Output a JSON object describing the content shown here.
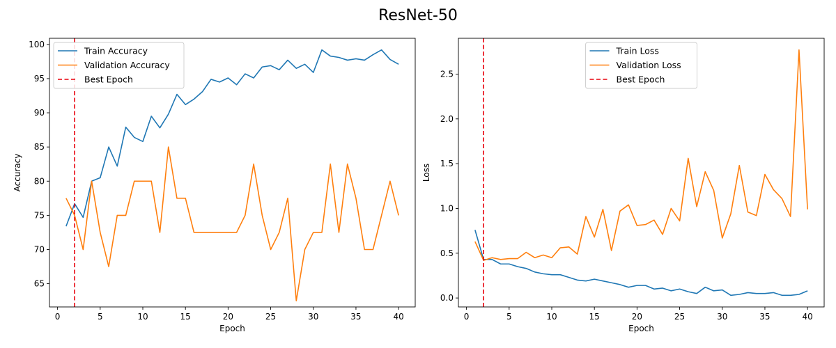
{
  "title": "ResNet-50",
  "colors": {
    "train": "#1f77b4",
    "validation": "#ff7f0e",
    "best": "#e8000b"
  },
  "chart_data": [
    {
      "type": "line",
      "title": "",
      "xlabel": "Epoch",
      "ylabel": "Accuracy",
      "xlim": [
        -0.95,
        41.95
      ],
      "ylim": [
        61.6,
        100.9
      ],
      "xticks": [
        0,
        5,
        10,
        15,
        20,
        25,
        30,
        35,
        40
      ],
      "yticks": [
        65,
        70,
        75,
        80,
        85,
        90,
        95,
        100
      ],
      "grid": false,
      "legend_position": "upper-left",
      "x": [
        1,
        2,
        3,
        4,
        5,
        6,
        7,
        8,
        9,
        10,
        11,
        12,
        13,
        14,
        15,
        16,
        17,
        18,
        19,
        20,
        21,
        22,
        23,
        24,
        25,
        26,
        27,
        28,
        29,
        30,
        31,
        32,
        33,
        34,
        35,
        36,
        37,
        38,
        39,
        40
      ],
      "series": [
        {
          "name": "Train Accuracy",
          "color_key": "train",
          "values": [
            73.4,
            76.7,
            74.7,
            80.0,
            80.5,
            85.0,
            82.2,
            87.9,
            86.4,
            85.8,
            89.5,
            87.8,
            89.8,
            92.7,
            91.2,
            92.0,
            93.1,
            94.9,
            94.5,
            95.1,
            94.1,
            95.7,
            95.1,
            96.7,
            96.9,
            96.3,
            97.7,
            96.5,
            97.1,
            95.9,
            99.2,
            98.3,
            98.1,
            97.7,
            97.9,
            97.7,
            98.5,
            99.2,
            97.8,
            97.1
          ]
        },
        {
          "name": "Validation Accuracy",
          "color_key": "validation",
          "values": [
            77.5,
            75.0,
            70.0,
            80.0,
            72.5,
            67.5,
            75.0,
            75.0,
            80.0,
            80.0,
            80.0,
            72.5,
            85.0,
            77.5,
            77.5,
            72.5,
            72.5,
            72.5,
            72.5,
            72.5,
            72.5,
            75.0,
            82.5,
            75.0,
            70.0,
            72.5,
            77.5,
            62.5,
            70.0,
            72.5,
            72.5,
            82.5,
            72.5,
            82.5,
            77.5,
            70.0,
            70.0,
            75.0,
            80.0,
            75.0
          ]
        }
      ],
      "best_epoch": {
        "name": "Best Epoch",
        "x": 2,
        "color_key": "best"
      }
    },
    {
      "type": "line",
      "title": "",
      "xlabel": "Epoch",
      "ylabel": "Loss",
      "xlim": [
        -0.95,
        41.95
      ],
      "ylim": [
        -0.1,
        2.9
      ],
      "xticks": [
        0,
        5,
        10,
        15,
        20,
        25,
        30,
        35,
        40
      ],
      "yticks": [
        0.0,
        0.5,
        1.0,
        1.5,
        2.0,
        2.5
      ],
      "ytick_labels": [
        "0.0",
        "0.5",
        "1.0",
        "1.5",
        "2.0",
        "2.5"
      ],
      "grid": false,
      "legend_position": "upper-center",
      "x": [
        1,
        2,
        3,
        4,
        5,
        6,
        7,
        8,
        9,
        10,
        11,
        12,
        13,
        14,
        15,
        16,
        17,
        18,
        19,
        20,
        21,
        22,
        23,
        24,
        25,
        26,
        27,
        28,
        29,
        30,
        31,
        32,
        33,
        34,
        35,
        36,
        37,
        38,
        39,
        40
      ],
      "series": [
        {
          "name": "Train Loss",
          "color_key": "train",
          "values": [
            0.76,
            0.43,
            0.43,
            0.38,
            0.38,
            0.35,
            0.33,
            0.29,
            0.27,
            0.26,
            0.26,
            0.23,
            0.2,
            0.19,
            0.21,
            0.19,
            0.17,
            0.15,
            0.12,
            0.14,
            0.14,
            0.1,
            0.11,
            0.08,
            0.1,
            0.07,
            0.05,
            0.12,
            0.08,
            0.09,
            0.03,
            0.04,
            0.06,
            0.05,
            0.05,
            0.06,
            0.03,
            0.03,
            0.04,
            0.08
          ]
        },
        {
          "name": "Validation Loss",
          "color_key": "validation",
          "values": [
            0.63,
            0.42,
            0.45,
            0.43,
            0.44,
            0.44,
            0.51,
            0.45,
            0.48,
            0.45,
            0.56,
            0.57,
            0.49,
            0.91,
            0.68,
            0.99,
            0.53,
            0.97,
            1.04,
            0.81,
            0.82,
            0.87,
            0.71,
            1.0,
            0.86,
            1.56,
            1.02,
            1.41,
            1.2,
            0.67,
            0.94,
            1.48,
            0.96,
            0.92,
            1.38,
            1.21,
            1.11,
            0.91,
            2.77,
            0.99
          ]
        }
      ],
      "best_epoch": {
        "name": "Best Epoch",
        "x": 2,
        "color_key": "best"
      }
    }
  ]
}
